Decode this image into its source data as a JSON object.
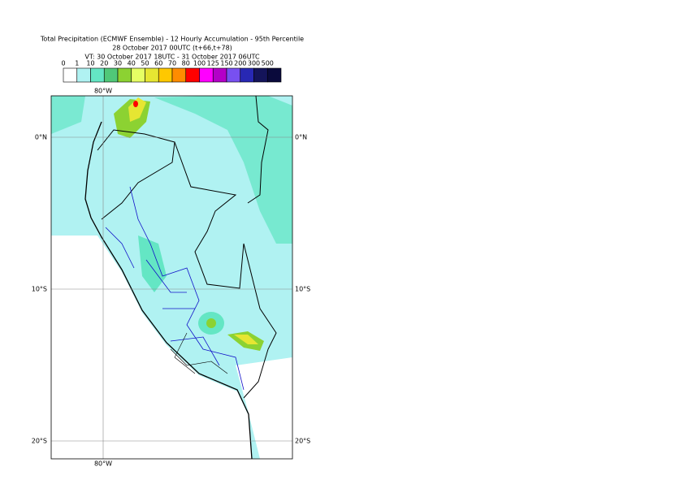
{
  "header": {
    "title": "Total Precipitation (ECMWF Ensemble) - 12 Hourly Accumulation - 95th Percentile",
    "subtitle": "28 October 2017 00UTC (t+66,t+78)",
    "valid_time": "VT: 30 October 2017 18UTC - 31 October 2017 06UTC"
  },
  "legend": {
    "labels": [
      "0",
      "1",
      "10",
      "20",
      "30",
      "40",
      "50",
      "60",
      "70",
      "80",
      "100",
      "125",
      "150",
      "200",
      "300",
      "500"
    ],
    "colors": [
      "#ffffff",
      "#b0f2f2",
      "#64e6c4",
      "#50c878",
      "#8cd232",
      "#e6ff64",
      "#e6e632",
      "#ffc800",
      "#ff8c00",
      "#ff0000",
      "#ff00ff",
      "#b400c8",
      "#7850f0",
      "#2828b4",
      "#14145a",
      "#0a0a3c"
    ]
  },
  "map": {
    "lon_labels": [
      "80°W"
    ],
    "lat_labels": [
      "0°N",
      "10°S",
      "20°S"
    ]
  }
}
